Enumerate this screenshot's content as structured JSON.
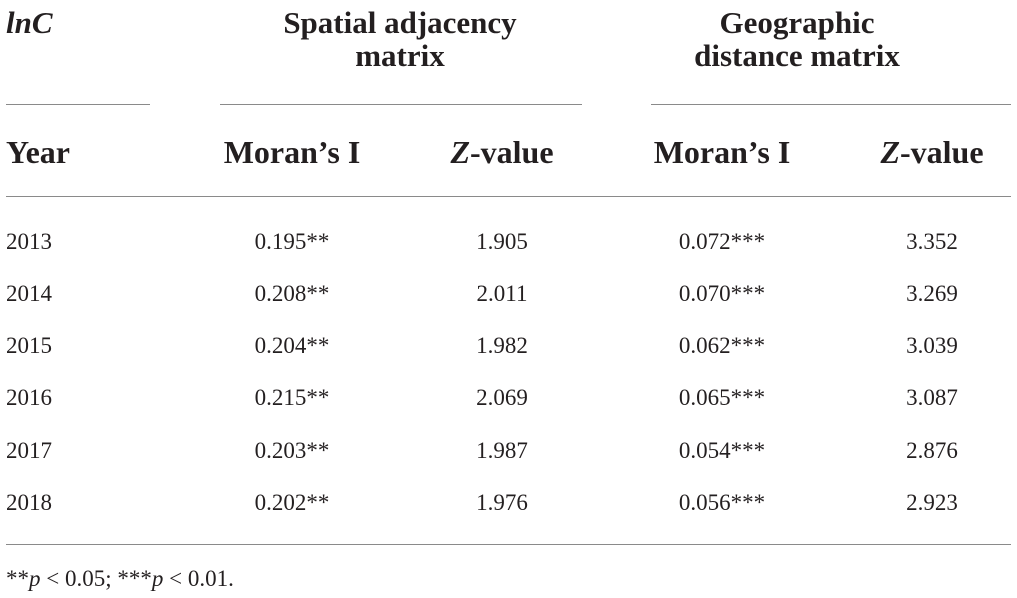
{
  "table": {
    "corner_label": "lnC",
    "groups": [
      {
        "line1": "Spatial adjacency",
        "line2": "matrix"
      },
      {
        "line1": "Geographic",
        "line2": "distance matrix"
      }
    ],
    "columns": {
      "year": "Year",
      "morans_i": "Moran’s I",
      "z_prefix": "Z",
      "z_suffix": "-value"
    },
    "rows": [
      {
        "year": "2013",
        "adj_moran": "0.195**",
        "adj_z": "1.905",
        "geo_moran": "0.072***",
        "geo_z": "3.352"
      },
      {
        "year": "2014",
        "adj_moran": "0.208**",
        "adj_z": "2.011",
        "geo_moran": "0.070***",
        "geo_z": "3.269"
      },
      {
        "year": "2015",
        "adj_moran": "0.204**",
        "adj_z": "1.982",
        "geo_moran": "0.062***",
        "geo_z": "3.039"
      },
      {
        "year": "2016",
        "adj_moran": "0.215**",
        "adj_z": "2.069",
        "geo_moran": "0.065***",
        "geo_z": "3.087"
      },
      {
        "year": "2017",
        "adj_moran": "0.203**",
        "adj_z": "1.987",
        "geo_moran": "0.054***",
        "geo_z": "2.876"
      },
      {
        "year": "2018",
        "adj_moran": "0.202**",
        "adj_z": "1.976",
        "geo_moran": "0.056***",
        "geo_z": "2.923"
      }
    ],
    "footnote": {
      "stars1": "**",
      "p1": "p",
      "cond1": " < 0.05; ",
      "stars2": "***",
      "p2": "p",
      "cond2": " < 0.01."
    }
  }
}
